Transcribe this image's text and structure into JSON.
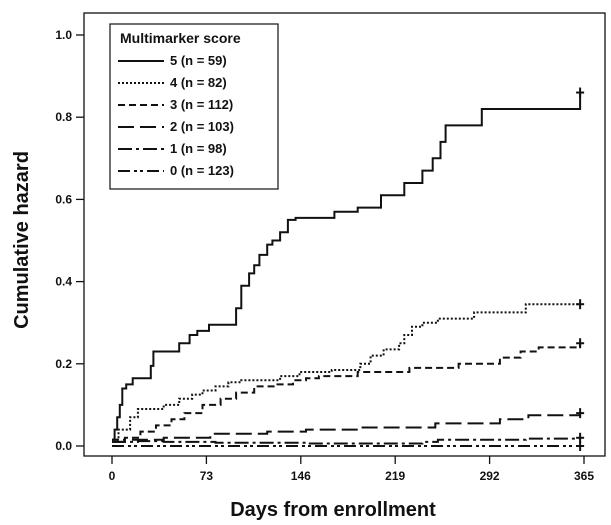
{
  "chart_data": {
    "type": "line",
    "step": true,
    "xlabel": "Days from enrollment",
    "ylabel": "Cumulative hazard",
    "xlim": [
      0,
      365
    ],
    "ylim": [
      0,
      1.0
    ],
    "xticks": [
      "0",
      "73",
      "146",
      "219",
      "292",
      "365"
    ],
    "xtick_values": [
      0,
      73,
      146,
      219,
      292,
      365
    ],
    "yticks": [
      "0.0",
      "0.2",
      "0.4",
      "0.6",
      "0.8",
      "1.0"
    ],
    "ytick_values": [
      0,
      0.2,
      0.4,
      0.6,
      0.8,
      1.0
    ],
    "grid": false,
    "legend": {
      "title": "Multimarker score",
      "placement": "top-left"
    },
    "series": [
      {
        "name": "5 (n = 59)",
        "dash": "solid",
        "points": [
          [
            0,
            0.015
          ],
          [
            2,
            0.04
          ],
          [
            4,
            0.07
          ],
          [
            6,
            0.1
          ],
          [
            8,
            0.14
          ],
          [
            11,
            0.15
          ],
          [
            16,
            0.165
          ],
          [
            30,
            0.195
          ],
          [
            32,
            0.23
          ],
          [
            52,
            0.25
          ],
          [
            60,
            0.27
          ],
          [
            66,
            0.28
          ],
          [
            75,
            0.295
          ],
          [
            96,
            0.335
          ],
          [
            100,
            0.39
          ],
          [
            106,
            0.42
          ],
          [
            110,
            0.44
          ],
          [
            114,
            0.465
          ],
          [
            120,
            0.49
          ],
          [
            124,
            0.5
          ],
          [
            130,
            0.52
          ],
          [
            136,
            0.55
          ],
          [
            142,
            0.555
          ],
          [
            150,
            0.555
          ],
          [
            172,
            0.57
          ],
          [
            190,
            0.58
          ],
          [
            208,
            0.61
          ],
          [
            226,
            0.64
          ],
          [
            240,
            0.67
          ],
          [
            248,
            0.7
          ],
          [
            254,
            0.74
          ],
          [
            258,
            0.78
          ],
          [
            286,
            0.82
          ],
          [
            362,
            0.86
          ]
        ],
        "censor_at_end": true
      },
      {
        "name": "4 (n = 82)",
        "dash": "dotted",
        "points": [
          [
            0,
            0.015
          ],
          [
            5,
            0.04
          ],
          [
            14,
            0.07
          ],
          [
            20,
            0.09
          ],
          [
            40,
            0.1
          ],
          [
            52,
            0.115
          ],
          [
            62,
            0.125
          ],
          [
            70,
            0.135
          ],
          [
            80,
            0.145
          ],
          [
            90,
            0.155
          ],
          [
            100,
            0.16
          ],
          [
            130,
            0.17
          ],
          [
            145,
            0.18
          ],
          [
            170,
            0.185
          ],
          [
            192,
            0.2
          ],
          [
            200,
            0.22
          ],
          [
            210,
            0.235
          ],
          [
            222,
            0.25
          ],
          [
            226,
            0.27
          ],
          [
            232,
            0.29
          ],
          [
            240,
            0.3
          ],
          [
            252,
            0.31
          ],
          [
            280,
            0.325
          ],
          [
            320,
            0.345
          ],
          [
            362,
            0.345
          ]
        ],
        "censor_at_end": true
      },
      {
        "name": "3 (n = 112)",
        "dash": "dashed",
        "points": [
          [
            0,
            0.015
          ],
          [
            10,
            0.02
          ],
          [
            22,
            0.035
          ],
          [
            34,
            0.05
          ],
          [
            46,
            0.065
          ],
          [
            56,
            0.08
          ],
          [
            70,
            0.1
          ],
          [
            84,
            0.115
          ],
          [
            96,
            0.13
          ],
          [
            110,
            0.145
          ],
          [
            128,
            0.15
          ],
          [
            140,
            0.16
          ],
          [
            150,
            0.165
          ],
          [
            160,
            0.17
          ],
          [
            190,
            0.18
          ],
          [
            230,
            0.19
          ],
          [
            268,
            0.2
          ],
          [
            300,
            0.215
          ],
          [
            316,
            0.23
          ],
          [
            330,
            0.24
          ],
          [
            362,
            0.25
          ]
        ],
        "censor_at_end": true
      },
      {
        "name": "2 (n = 103)",
        "dash": "longdash",
        "points": [
          [
            0,
            0.01
          ],
          [
            10,
            0.015
          ],
          [
            40,
            0.02
          ],
          [
            76,
            0.03
          ],
          [
            120,
            0.035
          ],
          [
            150,
            0.04
          ],
          [
            190,
            0.045
          ],
          [
            250,
            0.055
          ],
          [
            300,
            0.065
          ],
          [
            322,
            0.075
          ],
          [
            362,
            0.08
          ]
        ],
        "censor_at_end": true
      },
      {
        "name": "1 (n = 98)",
        "dash": "dashdot",
        "points": [
          [
            0,
            0.01
          ],
          [
            20,
            0.012
          ],
          [
            40,
            0.01
          ],
          [
            80,
            0.008
          ],
          [
            150,
            0.006
          ],
          [
            240,
            0.01
          ],
          [
            252,
            0.015
          ],
          [
            320,
            0.018
          ],
          [
            362,
            0.02
          ]
        ],
        "censor_at_end": true
      },
      {
        "name": "0 (n = 123)",
        "dash": "dashdotdot",
        "points": [
          [
            0,
            0
          ],
          [
            362,
            0
          ]
        ],
        "censor_at_end": true
      }
    ]
  }
}
